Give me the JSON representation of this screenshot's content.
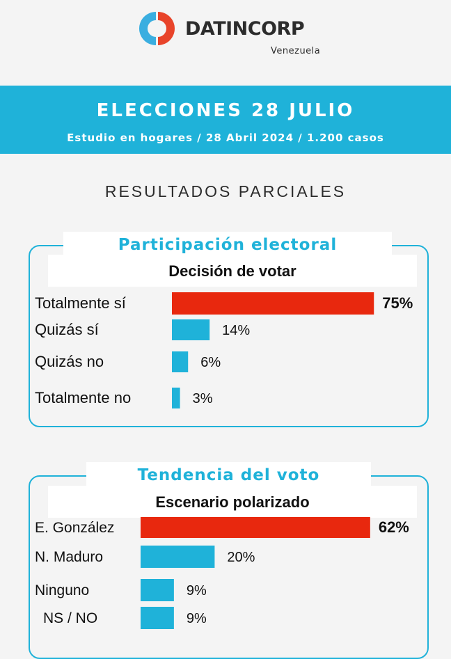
{
  "brand": {
    "name": "DATINCORP",
    "country": "Venezuela",
    "colors": {
      "red": "#e8442a",
      "blue": "#3aaee0"
    }
  },
  "banner": {
    "title": "ELECCIONES 28 JULIO",
    "subtitle": "Estudio en hogares / 28 Abril 2024 / 1.200 casos",
    "color": "#1fb2d9"
  },
  "section_title": "RESULTADOS PARCIALES",
  "panels": [
    {
      "tab": "Participación electoral",
      "chart_title": "Decisión de votar"
    },
    {
      "tab": "Tendencia del voto",
      "chart_title": "Escenario polarizado"
    }
  ],
  "chart_data": [
    {
      "type": "bar",
      "orientation": "horizontal",
      "title": "Decisión de votar",
      "categories": [
        "Totalmente sí",
        "Quizás sí",
        "Quizás no",
        "Totalmente no"
      ],
      "values": [
        75,
        14,
        6,
        3
      ],
      "labels": [
        "75%",
        "14%",
        "6%",
        "3%"
      ],
      "unit": "%",
      "highlight_color": "#e8280e",
      "bar_color": "#1fb2d9"
    },
    {
      "type": "bar",
      "orientation": "horizontal",
      "title": "Escenario polarizado",
      "categories": [
        "E. González",
        "N. Maduro",
        "Ninguno",
        "NS / NO"
      ],
      "values": [
        62,
        20,
        9,
        9
      ],
      "labels": [
        "62%",
        "20%",
        "9%",
        "9%"
      ],
      "unit": "%",
      "highlight_color": "#e8280e",
      "bar_color": "#1fb2d9"
    }
  ]
}
